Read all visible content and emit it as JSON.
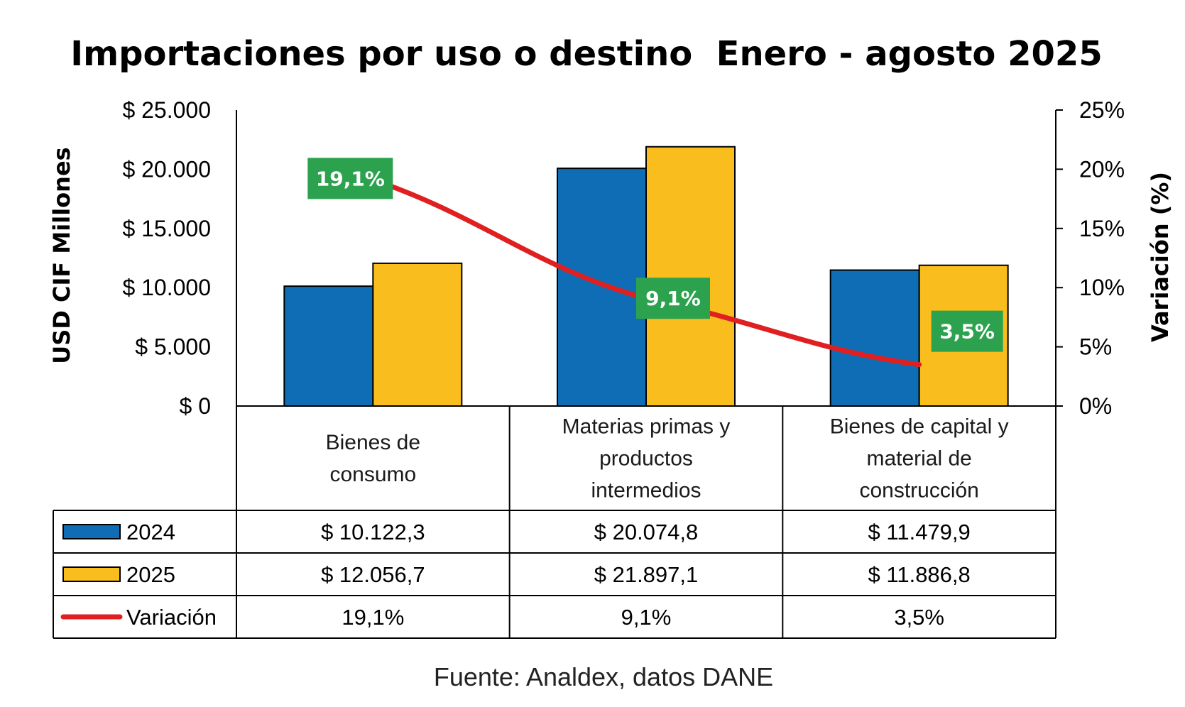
{
  "colors": {
    "series_2024": "#0f6db5",
    "series_2025": "#f9be1d",
    "variation_line": "#e02020",
    "label_bg": "#2ca24f"
  },
  "chart_data": {
    "type": "bar",
    "title": "Importaciones por uso o destino  Enero - agosto 2025",
    "ylabel": "USD CIF Millones",
    "y2label": "Variación (%)",
    "ylim": [
      0,
      25000
    ],
    "y2lim": [
      0,
      25
    ],
    "yticks": [
      "$ 0",
      "$ 5.000",
      "$ 10.000",
      "$ 15.000",
      "$ 20.000",
      "$ 25.000"
    ],
    "y2ticks": [
      "0%",
      "5%",
      "10%",
      "15%",
      "20%",
      "25%"
    ],
    "categories": [
      [
        "Bienes de",
        "consumo"
      ],
      [
        "Materias primas y",
        "productos",
        "intermedios"
      ],
      [
        "Bienes de capital y",
        "material de",
        "construcción"
      ]
    ],
    "series": [
      {
        "name": "2024",
        "values": [
          10122.3,
          20074.8,
          11479.9
        ],
        "table": [
          "$ 10.122,3",
          "$ 20.074,8",
          "$ 11.479,9"
        ]
      },
      {
        "name": "2025",
        "values": [
          12056.7,
          21897.1,
          11886.8
        ],
        "table": [
          "$ 12.056,7",
          "$ 21.897,1",
          "$ 11.886,8"
        ]
      }
    ],
    "line": {
      "name": "Variación",
      "values": [
        19.1,
        9.1,
        3.5
      ],
      "labels": [
        "19,1%",
        "9,1%",
        "3,5%"
      ]
    },
    "source": "Fuente: Analdex, datos DANE"
  }
}
